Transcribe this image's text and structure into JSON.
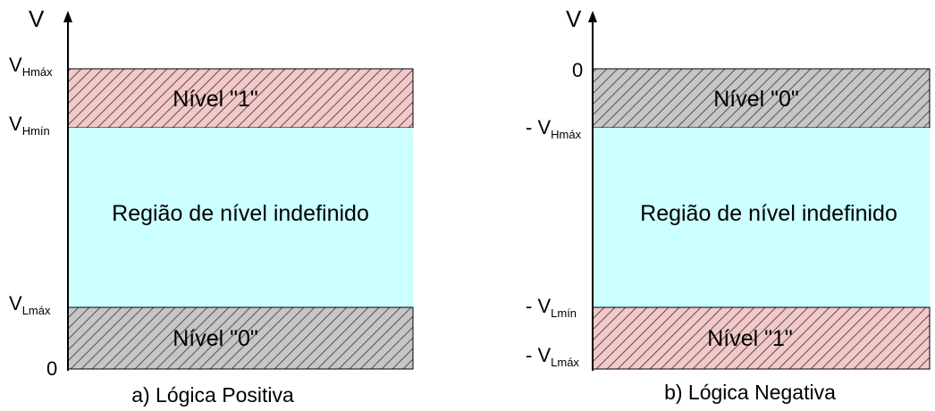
{
  "colors": {
    "hatch_red": "#f4c8c8",
    "hatch_gray": "#c6c6c6",
    "undefined_region": "#ccffff",
    "hatch_line": "#555555"
  },
  "panel_a": {
    "axis_label": "V",
    "ticks": {
      "vh_max": {
        "main": "V",
        "sub": "Hmáx"
      },
      "vh_min": {
        "main": "V",
        "sub": "Hmín"
      },
      "vl_max": {
        "main": "V",
        "sub": "Lmáx"
      },
      "zero": "0"
    },
    "top_band_label": "Nível \"1\"",
    "middle_label": "Região de nível indefinido",
    "bottom_band_label": "Nível \"0\"",
    "caption": "a) Lógica  Positiva"
  },
  "panel_b": {
    "axis_label": "V",
    "ticks": {
      "zero": "0",
      "vh_max": {
        "prefix": "- ",
        "main": "V",
        "sub": "Hmáx"
      },
      "vl_min": {
        "prefix": "- ",
        "main": "V",
        "sub": "Lmín"
      },
      "vl_max": {
        "prefix": "- ",
        "main": "V",
        "sub": "Lmáx"
      }
    },
    "top_band_label": "Nível \"0\"",
    "middle_label": "Região de nível indefinido",
    "bottom_band_label": "Nível \"1\"",
    "caption": "b) Lógica Negativa"
  }
}
